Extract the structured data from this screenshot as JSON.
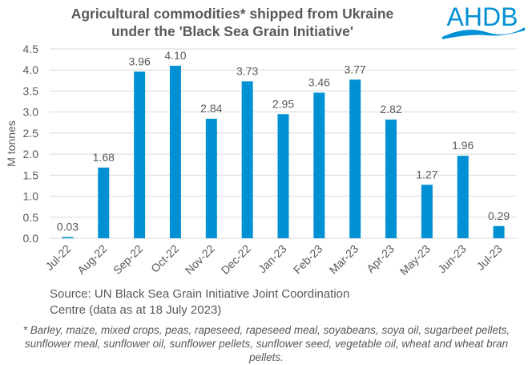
{
  "title_line1": "Agricultural commodities* shipped from Ukraine",
  "title_line2": "under the 'Black Sea Grain Initiative'",
  "logo_text": "AHDB",
  "source_line1": "Source: UN Black Sea Grain Initiative Joint Coordination",
  "source_line2": "Centre (data as at 18 July 2023)",
  "footnote": "* Barley, maize, mixed crops, peas, rapeseed, rapeseed meal, soyabeans, soya oil, sugarbeet pellets, sunflower meal, sunflower oil, sunflower pellets, sunflower seed, vegetable oil, wheat and wheat bran pellets.",
  "chart_data": {
    "type": "bar",
    "title": "Agricultural commodities* shipped from Ukraine under the 'Black Sea Grain Initiative'",
    "ylabel": "M tonnes",
    "xlabel": "",
    "categories": [
      "Jul-22",
      "Aug-22",
      "Sep-22",
      "Oct-22",
      "Nov-22",
      "Dec-22",
      "Jan-23",
      "Feb-23",
      "Mar-23",
      "Apr-23",
      "May-23",
      "Jun-23",
      "Jul-23"
    ],
    "values": [
      0.03,
      1.68,
      3.96,
      4.1,
      2.84,
      3.73,
      2.95,
      3.46,
      3.77,
      2.82,
      1.27,
      1.96,
      0.29
    ],
    "data_labels": [
      "0.03",
      "1.68",
      "3.96",
      "4.10",
      "2.84",
      "3.73",
      "2.95",
      "3.46",
      "3.77",
      "2.82",
      "1.27",
      "1.96",
      "0.29"
    ],
    "yticks": [
      "0.0",
      "0.5",
      "1.0",
      "1.5",
      "2.0",
      "2.5",
      "3.0",
      "3.5",
      "4.0",
      "4.5"
    ],
    "ylim": [
      0,
      4.5
    ],
    "grid": true,
    "legend": "none",
    "bar_color": "#0090D4"
  }
}
